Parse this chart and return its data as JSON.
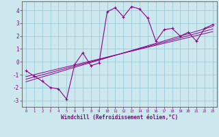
{
  "xlabel": "Windchill (Refroidissement éolien,°C)",
  "bg_color": "#cce8ee",
  "grid_color": "#99ccd9",
  "line_color": "#880088",
  "spine_color": "#555555",
  "xlim": [
    -0.5,
    23.5
  ],
  "ylim": [
    -3.5,
    4.7
  ],
  "yticks": [
    -3,
    -2,
    -1,
    0,
    1,
    2,
    3,
    4
  ],
  "xticks": [
    0,
    1,
    2,
    3,
    4,
    5,
    6,
    7,
    8,
    9,
    10,
    11,
    12,
    13,
    14,
    15,
    16,
    17,
    18,
    19,
    20,
    21,
    22,
    23
  ],
  "x_data": [
    0,
    1,
    2,
    3,
    4,
    5,
    6,
    7,
    8,
    9,
    10,
    11,
    12,
    13,
    14,
    15,
    16,
    17,
    18,
    19,
    20,
    21,
    22,
    23
  ],
  "y_data": [
    -0.7,
    -1.1,
    -1.5,
    -2.0,
    -2.1,
    -2.9,
    -0.2,
    0.7,
    -0.3,
    -0.1,
    3.9,
    4.2,
    3.5,
    4.3,
    4.1,
    3.4,
    1.6,
    2.5,
    2.6,
    2.0,
    2.3,
    1.6,
    2.6,
    2.9
  ],
  "regression_lines": [
    {
      "x": [
        0,
        23
      ],
      "y": [
        -1.55,
        2.75
      ]
    },
    {
      "x": [
        0,
        23
      ],
      "y": [
        -1.35,
        2.55
      ]
    },
    {
      "x": [
        0,
        23
      ],
      "y": [
        -1.15,
        2.35
      ]
    }
  ]
}
